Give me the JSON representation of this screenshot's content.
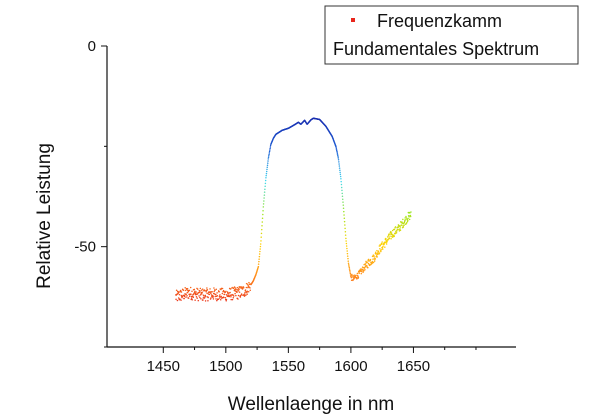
{
  "chart_data": {
    "type": "scatter",
    "title": "",
    "xlabel": "Wellenlaenge in nm",
    "ylabel": "Relative Leistung",
    "xlim": [
      1405,
      1732
    ],
    "ylim": [
      -75,
      0
    ],
    "xticks": [
      1450,
      1500,
      1550,
      1600,
      1650
    ],
    "yticks": [
      0,
      -50
    ],
    "grid": false,
    "legend": {
      "placement": "top-right",
      "entries": [
        "Frequenzkamm",
        "Fundamentales Spektrum"
      ]
    },
    "colormap": [
      "#e8261c",
      "#ff8c1a",
      "#ffd200",
      "#9be61e",
      "#3fd8f0",
      "#1f5fd6",
      "#1a2fb0"
    ],
    "series": [
      {
        "name": "Frequenzkamm",
        "marker": "point",
        "x": [
          1460,
          1470,
          1480,
          1490,
          1500,
          1505,
          1510,
          1515,
          1520,
          1522,
          1524,
          1526,
          1528,
          1530,
          1532,
          1534,
          1536,
          1538,
          1540,
          1545,
          1550,
          1555,
          1558,
          1560,
          1563,
          1565,
          1568,
          1570,
          1575,
          1580,
          1585,
          1588,
          1590,
          1592,
          1594,
          1596,
          1598,
          1600,
          1602,
          1604,
          1606,
          1610,
          1614,
          1618,
          1622,
          1626,
          1630,
          1634,
          1638,
          1642,
          1646,
          1648
        ],
        "y": [
          -62.5,
          -61.5,
          -62,
          -61.8,
          -62,
          -61.7,
          -61.5,
          -61,
          -59.5,
          -58.5,
          -57,
          -55,
          -49,
          -40,
          -33,
          -28,
          -24.5,
          -23,
          -22,
          -21,
          -20.5,
          -19.6,
          -19,
          -19.5,
          -18.5,
          -19.5,
          -18.4,
          -18,
          -18.3,
          -20,
          -22.5,
          -25,
          -28,
          -33,
          -40,
          -48,
          -54,
          -57.5,
          -58,
          -57.5,
          -57,
          -55.5,
          -54,
          -53,
          -51,
          -49.5,
          -48,
          -46.5,
          -45.5,
          -44,
          -42.5,
          -42
        ]
      }
    ]
  }
}
